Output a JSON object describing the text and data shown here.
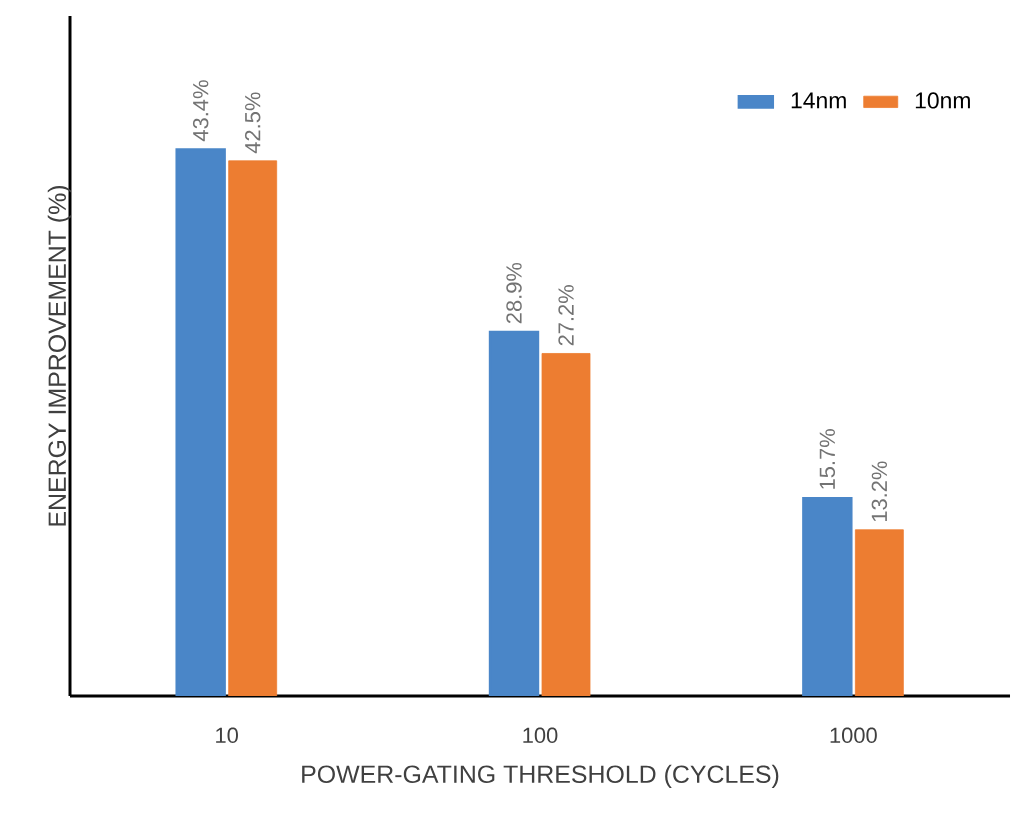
{
  "chart_data": {
    "type": "bar",
    "xlabel": "POWER-GATING THRESHOLD (CYCLES)",
    "ylabel": "ENERGY IMPROVEMENT (%)",
    "categories": [
      "10",
      "100",
      "1000"
    ],
    "series": [
      {
        "name": "14nm",
        "color": "#4a86c8",
        "values": [
          43.4,
          28.9,
          15.7
        ],
        "value_labels": [
          "43.4%",
          "28.9%",
          "15.7%"
        ]
      },
      {
        "name": "10nm",
        "color": "#ed7d31",
        "values": [
          42.5,
          27.2,
          13.2
        ],
        "value_labels": [
          "42.5%",
          "27.2%",
          "13.2%"
        ]
      }
    ],
    "ylim": [
      0,
      54
    ],
    "tick_labels": "x",
    "legend": "top right",
    "grid": false
  }
}
